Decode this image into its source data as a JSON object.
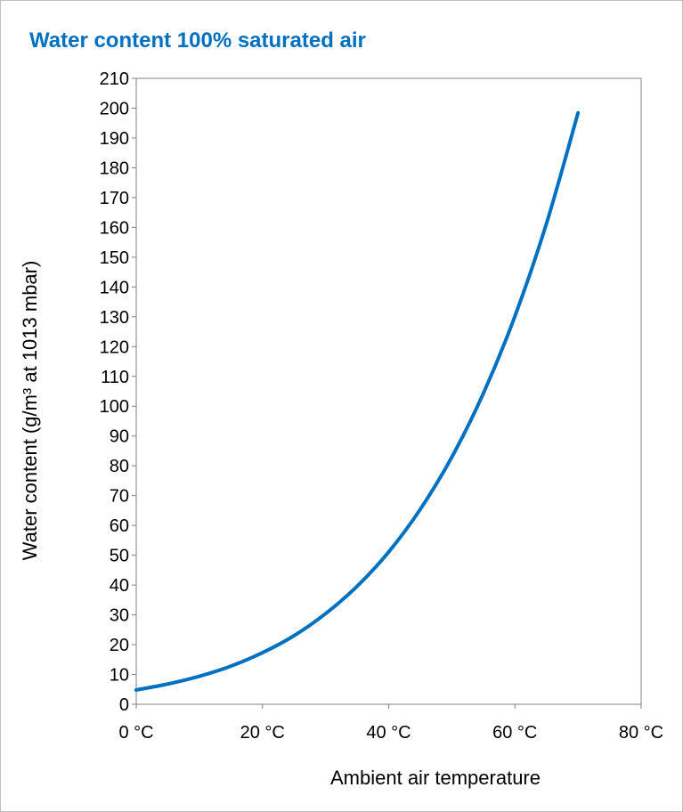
{
  "chart_data": {
    "type": "line",
    "title": "Water content 100% saturated air",
    "xlabel": "Ambient air temperature",
    "ylabel": "Water content (g/m³ at 1013 mbar)",
    "xlim": [
      0,
      80
    ],
    "ylim": [
      0,
      210
    ],
    "xtick_values": [
      0,
      20,
      40,
      60,
      80
    ],
    "xtick_labels": [
      "0 °C",
      "20 °C",
      "40 °C",
      "60 °C",
      "80 °C"
    ],
    "ytick_values": [
      0,
      10,
      20,
      30,
      40,
      50,
      60,
      70,
      80,
      90,
      100,
      110,
      120,
      130,
      140,
      150,
      160,
      170,
      180,
      190,
      200,
      210
    ],
    "ytick_labels": [
      "0",
      "10",
      "20",
      "30",
      "40",
      "50",
      "60",
      "70",
      "80",
      "90",
      "100",
      "110",
      "120",
      "130",
      "140",
      "150",
      "160",
      "170",
      "180",
      "190",
      "200",
      "210"
    ],
    "grid": false,
    "line_color": "#0070c0",
    "series": [
      {
        "x": [
          0,
          5,
          10,
          15,
          20,
          25,
          30,
          35,
          40,
          45,
          50,
          55,
          60,
          65,
          70
        ],
        "y": [
          4.8,
          6.8,
          9.4,
          12.8,
          17.3,
          23.0,
          30.4,
          39.6,
          51.1,
          65.4,
          82.9,
          104.3,
          130.2,
          161.3,
          198.4
        ]
      }
    ]
  }
}
